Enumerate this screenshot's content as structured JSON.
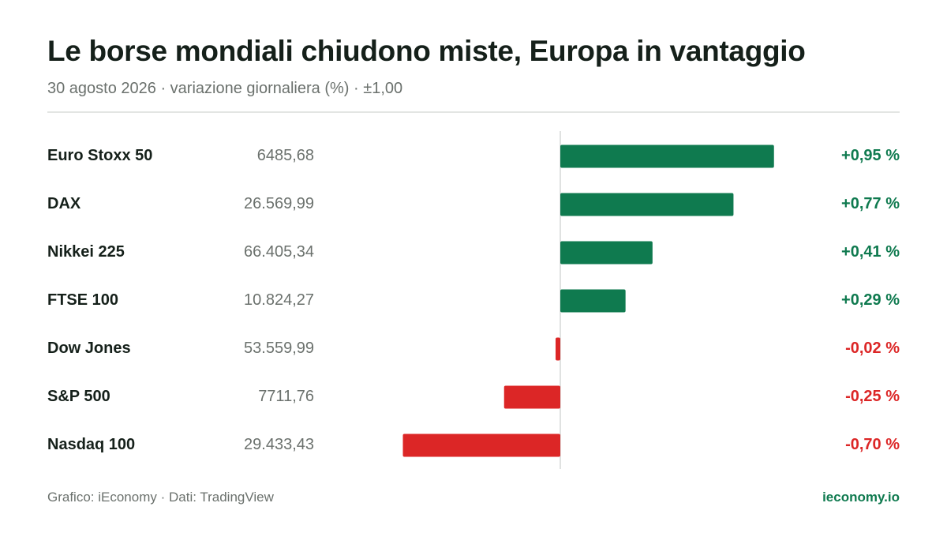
{
  "header": {
    "title": "Le borse mondiali chiudono miste, Europa in vantaggio",
    "subtitle": "30 agosto 2026 · variazione giornaliera (%) · ±1,00"
  },
  "footer": {
    "credit": "Grafico: iEconomy · Dati: TradingView",
    "brand": "ieconomy.io"
  },
  "colors": {
    "positive": "#0f7a4f",
    "negative": "#dc2626",
    "axis": "#d6d9d7"
  },
  "chart_data": {
    "type": "bar",
    "orientation": "horizontal",
    "title": "Le borse mondiali chiudono miste, Europa in vantaggio",
    "subtitle": "30 agosto 2026 · variazione giornaliera (%) · ±1,00",
    "xlim": [
      -1,
      1
    ],
    "grid": false,
    "legend": "none",
    "rows": [
      {
        "name": "Euro Stoxx 50",
        "price": "6485,68",
        "value": 0.95,
        "label": "+0,95 %"
      },
      {
        "name": "DAX",
        "price": "26.569,99",
        "value": 0.77,
        "label": "+0,77 %"
      },
      {
        "name": "Nikkei 225",
        "price": "66.405,34",
        "value": 0.41,
        "label": "+0,41 %"
      },
      {
        "name": "FTSE 100",
        "price": "10.824,27",
        "value": 0.29,
        "label": "+0,29 %"
      },
      {
        "name": "Dow Jones",
        "price": "53.559,99",
        "value": -0.02,
        "label": "-0,02 %"
      },
      {
        "name": "S&P 500",
        "price": "7711,76",
        "value": -0.25,
        "label": "-0,25 %"
      },
      {
        "name": "Nasdaq 100",
        "price": "29.433,43",
        "value": -0.7,
        "label": "-0,70 %"
      }
    ]
  }
}
